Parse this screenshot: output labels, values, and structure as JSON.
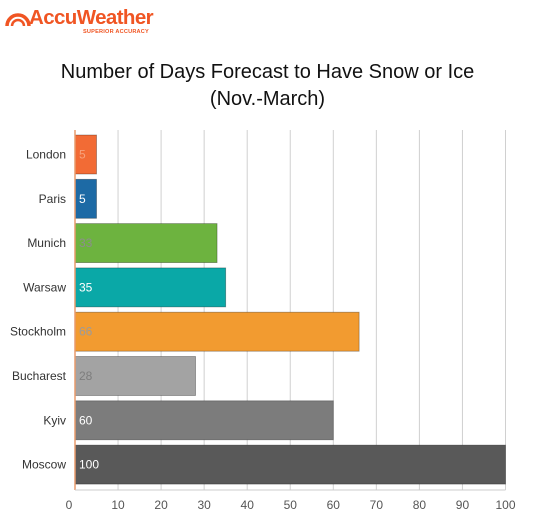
{
  "logo": {
    "brand": "AccuWeather",
    "tagline": "SUPERIOR ACCURACY",
    "icon": "sun-arc-icon",
    "color": "#f05523"
  },
  "chart_data": {
    "type": "bar",
    "orientation": "horizontal",
    "title": "Number of Days Forecast to Have Snow or Ice",
    "subtitle": "(Nov.-March)",
    "xlabel": "",
    "ylabel": "",
    "categories": [
      "London",
      "Paris",
      "Munich",
      "Warsaw",
      "Stockholm",
      "Bucharest",
      "Kyiv",
      "Moscow"
    ],
    "values": [
      5,
      5,
      33,
      35,
      66,
      28,
      60,
      100
    ],
    "colors": [
      "#f26b35",
      "#1d6aa5",
      "#6db33f",
      "#0aa8a7",
      "#f29b30",
      "#a3a3a3",
      "#7c7c7c",
      "#595959"
    ],
    "label_colors": [
      "#f7a27c",
      "#ffffff",
      "#8d8d8d",
      "#ffffff",
      "#9b9b9b",
      "#7d7d7d",
      "#ffffff",
      "#ffffff"
    ],
    "xlim": [
      0,
      100
    ],
    "xticks": [
      0,
      10,
      20,
      30,
      40,
      50,
      60,
      70,
      80,
      90,
      100
    ],
    "grid": true
  }
}
